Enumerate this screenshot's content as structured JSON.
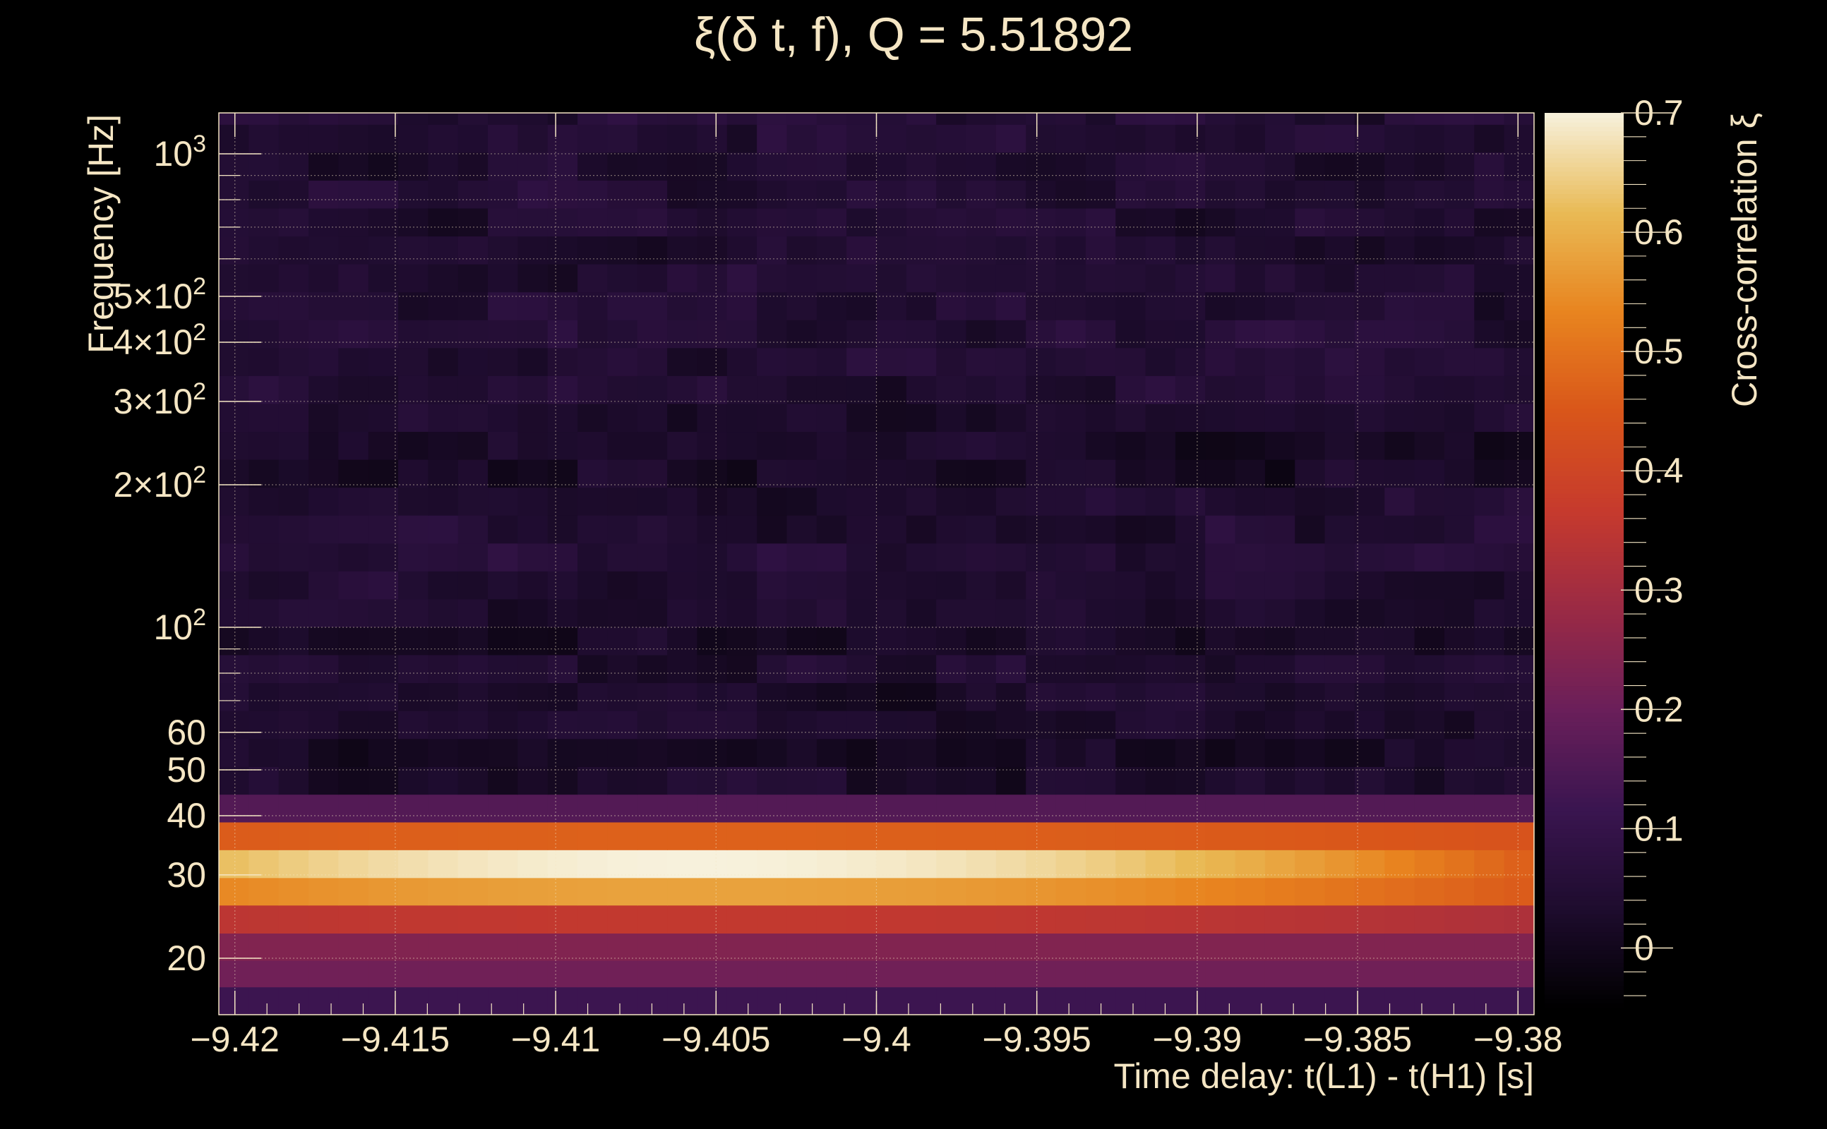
{
  "chart_data": {
    "type": "heatmap",
    "title": "ξ(δ t, f), Q = 5.51892",
    "xlabel": "Time delay: t(L1) - t(H1) [s]",
    "ylabel": "Frequency [Hz]",
    "colorbar_label": "Cross-correlation ξ",
    "xlim": [
      -9.4205,
      -9.3795
    ],
    "ylim": [
      15.2,
      1220
    ],
    "y_scale": "log",
    "clim": [
      -0.05,
      0.7
    ],
    "grid": true,
    "x_ticks": [
      {
        "value": -9.42,
        "label": "−9.42"
      },
      {
        "value": -9.415,
        "label": "−9.415"
      },
      {
        "value": -9.41,
        "label": "−9.41"
      },
      {
        "value": -9.405,
        "label": "−9.405"
      },
      {
        "value": -9.4,
        "label": "−9.4"
      },
      {
        "value": -9.395,
        "label": "−9.395"
      },
      {
        "value": -9.39,
        "label": "−9.39"
      },
      {
        "value": -9.385,
        "label": "−9.385"
      },
      {
        "value": -9.38,
        "label": "−9.38"
      }
    ],
    "y_ticks": [
      {
        "value": 20,
        "base": "20",
        "exp": ""
      },
      {
        "value": 30,
        "base": "30",
        "exp": ""
      },
      {
        "value": 40,
        "base": "40",
        "exp": ""
      },
      {
        "value": 50,
        "base": "50",
        "exp": ""
      },
      {
        "value": 60,
        "base": "60",
        "exp": ""
      },
      {
        "value": 100,
        "base": "10",
        "exp": "2"
      },
      {
        "value": 200,
        "base": "2×10",
        "exp": "2"
      },
      {
        "value": 300,
        "base": "3×10",
        "exp": "2"
      },
      {
        "value": 400,
        "base": "4×10",
        "exp": "2"
      },
      {
        "value": 500,
        "base": "5×10",
        "exp": "2"
      },
      {
        "value": 1000,
        "base": "10",
        "exp": "3"
      }
    ],
    "y_minor_ticks": [
      70,
      80,
      90,
      600,
      700,
      800,
      900
    ],
    "colorbar_ticks": [
      {
        "value": 0,
        "label": "0"
      },
      {
        "value": 0.1,
        "label": "0.1"
      },
      {
        "value": 0.2,
        "label": "0.2"
      },
      {
        "value": 0.3,
        "label": "0.3"
      },
      {
        "value": 0.4,
        "label": "0.4"
      },
      {
        "value": 0.5,
        "label": "0.5"
      },
      {
        "value": 0.6,
        "label": "0.6"
      },
      {
        "value": 0.7,
        "label": "0.7"
      }
    ],
    "colormap": [
      "#000004",
      "#1b0c41",
      "#4a0c6b",
      "#781c6d",
      "#a52c60",
      "#cf4446",
      "#ed6925",
      "#fb9b06",
      "#f7d13d",
      "#fcffa4"
    ],
    "colormap_display": [
      "#000000",
      "#1e0c2e",
      "#3a1550",
      "#6a1f5a",
      "#9a2a45",
      "#c63a2d",
      "#d9561a",
      "#e8841f",
      "#e9ba55",
      "#f7f1dc"
    ],
    "freq_bands": [
      {
        "f_low": 15.2,
        "f_high": 17.4,
        "profile": "flat",
        "level": 0.12
      },
      {
        "f_low": 17.4,
        "f_high": 19.8,
        "profile": "flat",
        "level": 0.21
      },
      {
        "f_low": 19.8,
        "f_high": 22.6,
        "profile": "flat",
        "level": 0.24
      },
      {
        "f_low": 22.6,
        "f_high": 25.9,
        "profile": "peak",
        "peak": 0.36,
        "edge": 0.32
      },
      {
        "f_low": 25.9,
        "f_high": 29.6,
        "profile": "peak",
        "peak": 0.58,
        "edge": 0.46
      },
      {
        "f_low": 29.6,
        "f_high": 33.9,
        "profile": "peak",
        "peak": 0.7,
        "edge": 0.47
      },
      {
        "f_low": 33.9,
        "f_high": 38.8,
        "profile": "peak",
        "peak": 0.47,
        "edge": 0.44
      },
      {
        "f_low": 38.8,
        "f_high": 44.4,
        "profile": "flat",
        "level": 0.16
      },
      {
        "f_low": 44.4,
        "f_high": 50.8,
        "profile": "noise",
        "base": 0.035
      },
      {
        "f_low": 50.8,
        "f_high": 58.2,
        "profile": "noise",
        "base": 0.01
      },
      {
        "f_low": 58.2,
        "f_high": 66.7,
        "profile": "noise",
        "base": 0.02
      },
      {
        "f_low": 66.7,
        "f_high": 76.4,
        "profile": "noise",
        "base": 0.03
      },
      {
        "f_low": 76.4,
        "f_high": 87.5,
        "profile": "noise",
        "base": 0.04
      },
      {
        "f_low": 87.5,
        "f_high": 100.2,
        "profile": "noise",
        "base": 0.03
      },
      {
        "f_low": 100.2,
        "f_high": 114.8,
        "profile": "noise",
        "base": 0.035
      },
      {
        "f_low": 114.8,
        "f_high": 131.5,
        "profile": "noise",
        "base": 0.045
      },
      {
        "f_low": 131.5,
        "f_high": 150.6,
        "profile": "noise",
        "base": 0.05
      },
      {
        "f_low": 150.6,
        "f_high": 172.5,
        "profile": "noise",
        "base": 0.045
      },
      {
        "f_low": 172.5,
        "f_high": 197.6,
        "profile": "noise",
        "base": 0.04
      },
      {
        "f_low": 197.6,
        "f_high": 226.3,
        "profile": "noise",
        "base": 0.02
      },
      {
        "f_low": 226.3,
        "f_high": 259.2,
        "profile": "noise",
        "base": 0.025
      },
      {
        "f_low": 259.2,
        "f_high": 296.9,
        "profile": "noise",
        "base": 0.03
      },
      {
        "f_low": 296.9,
        "f_high": 340,
        "profile": "noise",
        "base": 0.04
      },
      {
        "f_low": 340,
        "f_high": 389.5,
        "profile": "noise",
        "base": 0.05
      },
      {
        "f_low": 389.5,
        "f_high": 446.1,
        "profile": "noise",
        "base": 0.05
      },
      {
        "f_low": 446.1,
        "f_high": 511,
        "profile": "noise",
        "base": 0.045
      },
      {
        "f_low": 511,
        "f_high": 585.3,
        "profile": "noise",
        "base": 0.04
      },
      {
        "f_low": 585.3,
        "f_high": 670.4,
        "profile": "noise",
        "base": 0.035
      },
      {
        "f_low": 670.4,
        "f_high": 767.9,
        "profile": "noise",
        "base": 0.04
      },
      {
        "f_low": 767.9,
        "f_high": 879.5,
        "profile": "noise",
        "base": 0.045
      },
      {
        "f_low": 879.5,
        "f_high": 1007.4,
        "profile": "noise",
        "base": 0.04
      },
      {
        "f_low": 1007.4,
        "f_high": 1153.9,
        "profile": "noise",
        "base": 0.045
      },
      {
        "f_low": 1153.9,
        "f_high": 1220,
        "profile": "noise",
        "base": 0.05
      }
    ],
    "time_bins": 44,
    "peak_delay": -9.4055
  }
}
